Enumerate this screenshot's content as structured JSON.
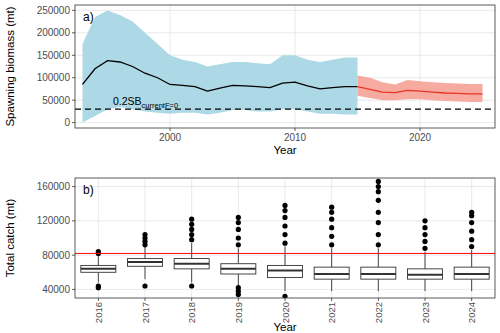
{
  "chart_data": [
    {
      "type": "line",
      "panel_label": "a)",
      "x_label": "Year",
      "y_label": "Spawning biomass (mt)",
      "xlim": [
        1992.4,
        2026
      ],
      "xticks": [
        2000,
        2010,
        2020
      ],
      "ylim": [
        -12000,
        262000
      ],
      "yticks": [
        0,
        50000,
        100000,
        150000,
        200000,
        250000
      ],
      "grid": true,
      "series": [
        {
          "color": "#000000",
          "band_color": "#add8e6",
          "x": [
            1993,
            1994,
            1995,
            1996,
            1997,
            1998,
            1999,
            2000,
            2001,
            2002,
            2003,
            2004,
            2005,
            2006,
            2007,
            2008,
            2009,
            2010,
            2011,
            2012,
            2013,
            2014,
            2015
          ],
          "values": [
            85000,
            120000,
            138000,
            135000,
            125000,
            110000,
            100000,
            85000,
            83000,
            80000,
            70000,
            77000,
            83000,
            82000,
            80000,
            78000,
            88000,
            90000,
            82000,
            75000,
            78000,
            80000,
            80000
          ],
          "lower": [
            0,
            15000,
            30000,
            35000,
            30000,
            25000,
            22000,
            20000,
            22000,
            22000,
            18000,
            22000,
            28000,
            28000,
            25000,
            25000,
            30000,
            30000,
            25000,
            20000,
            20000,
            18000,
            18000
          ],
          "upper": [
            175000,
            235000,
            250000,
            240000,
            225000,
            200000,
            175000,
            150000,
            140000,
            135000,
            125000,
            130000,
            135000,
            135000,
            132000,
            130000,
            150000,
            150000,
            140000,
            135000,
            140000,
            145000,
            145000
          ]
        },
        {
          "color": "#e8352a",
          "band_color": "#f6aaa0",
          "x": [
            2015,
            2016,
            2017,
            2018,
            2019,
            2020,
            2021,
            2022,
            2023,
            2024,
            2025
          ],
          "values": [
            80000,
            74000,
            68000,
            67000,
            72000,
            70000,
            68000,
            66000,
            65000,
            64000,
            64000
          ],
          "lower": [
            60000,
            55000,
            50000,
            50000,
            52000,
            52000,
            50000,
            48000,
            47000,
            46000,
            46000
          ],
          "upper": [
            105000,
            100000,
            90000,
            85000,
            95000,
            92000,
            90000,
            88000,
            87000,
            86000,
            86000
          ]
        }
      ],
      "hline": {
        "value": 30000,
        "color": "#000000",
        "line_style": "dashed",
        "label": "0.2SB",
        "label_subscript": "currentF=0"
      }
    },
    {
      "type": "box",
      "panel_label": "b)",
      "x_label": "Year",
      "y_label": "Total catch (mt)",
      "categories": [
        "2016",
        "2017",
        "2018",
        "2019",
        "2020",
        "2021",
        "2022",
        "2023",
        "2024"
      ],
      "ylim": [
        30000,
        170000
      ],
      "yticks": [
        40000,
        80000,
        120000,
        160000
      ],
      "grid": true,
      "boxes": [
        {
          "whislo": 48000,
          "q1": 60000,
          "median": 64000,
          "q3": 68000,
          "whishi": 80000,
          "outliers": [
            42000,
            44000,
            82000,
            84000
          ]
        },
        {
          "whislo": 52000,
          "q1": 67000,
          "median": 72000,
          "q3": 76000,
          "whishi": 90000,
          "outliers": [
            44000,
            92000,
            96000,
            100000,
            104000
          ]
        },
        {
          "whislo": 48000,
          "q1": 64000,
          "median": 70000,
          "q3": 76000,
          "whishi": 94000,
          "outliers": [
            44000,
            98000,
            104000,
            110000,
            116000,
            122000
          ]
        },
        {
          "whislo": 44000,
          "q1": 58000,
          "median": 64000,
          "q3": 70000,
          "whishi": 88000,
          "outliers": [
            34000,
            38000,
            42000,
            92000,
            100000,
            110000,
            118000,
            124000
          ]
        },
        {
          "whislo": 38000,
          "q1": 54000,
          "median": 62000,
          "q3": 68000,
          "whishi": 90000,
          "outliers": [
            32000,
            94000,
            104000,
            114000,
            124000,
            132000,
            138000
          ]
        },
        {
          "whislo": 38000,
          "q1": 52000,
          "median": 58000,
          "q3": 66000,
          "whishi": 88000,
          "outliers": [
            92000,
            102000,
            112000,
            122000,
            130000,
            136000
          ]
        },
        {
          "whislo": 38000,
          "q1": 52000,
          "median": 58000,
          "q3": 66000,
          "whishi": 88000,
          "outliers": [
            92000,
            104000,
            118000,
            130000,
            144000,
            154000,
            160000,
            166000
          ]
        },
        {
          "whislo": 38000,
          "q1": 52000,
          "median": 57000,
          "q3": 64000,
          "whishi": 84000,
          "outliers": [
            88000,
            96000,
            104000,
            112000,
            120000
          ]
        },
        {
          "whislo": 38000,
          "q1": 52000,
          "median": 58000,
          "q3": 66000,
          "whishi": 86000,
          "outliers": [
            90000,
            98000,
            108000,
            118000,
            126000,
            130000
          ]
        }
      ],
      "hline": {
        "value": 82000,
        "color": "#ff0000"
      }
    }
  ]
}
